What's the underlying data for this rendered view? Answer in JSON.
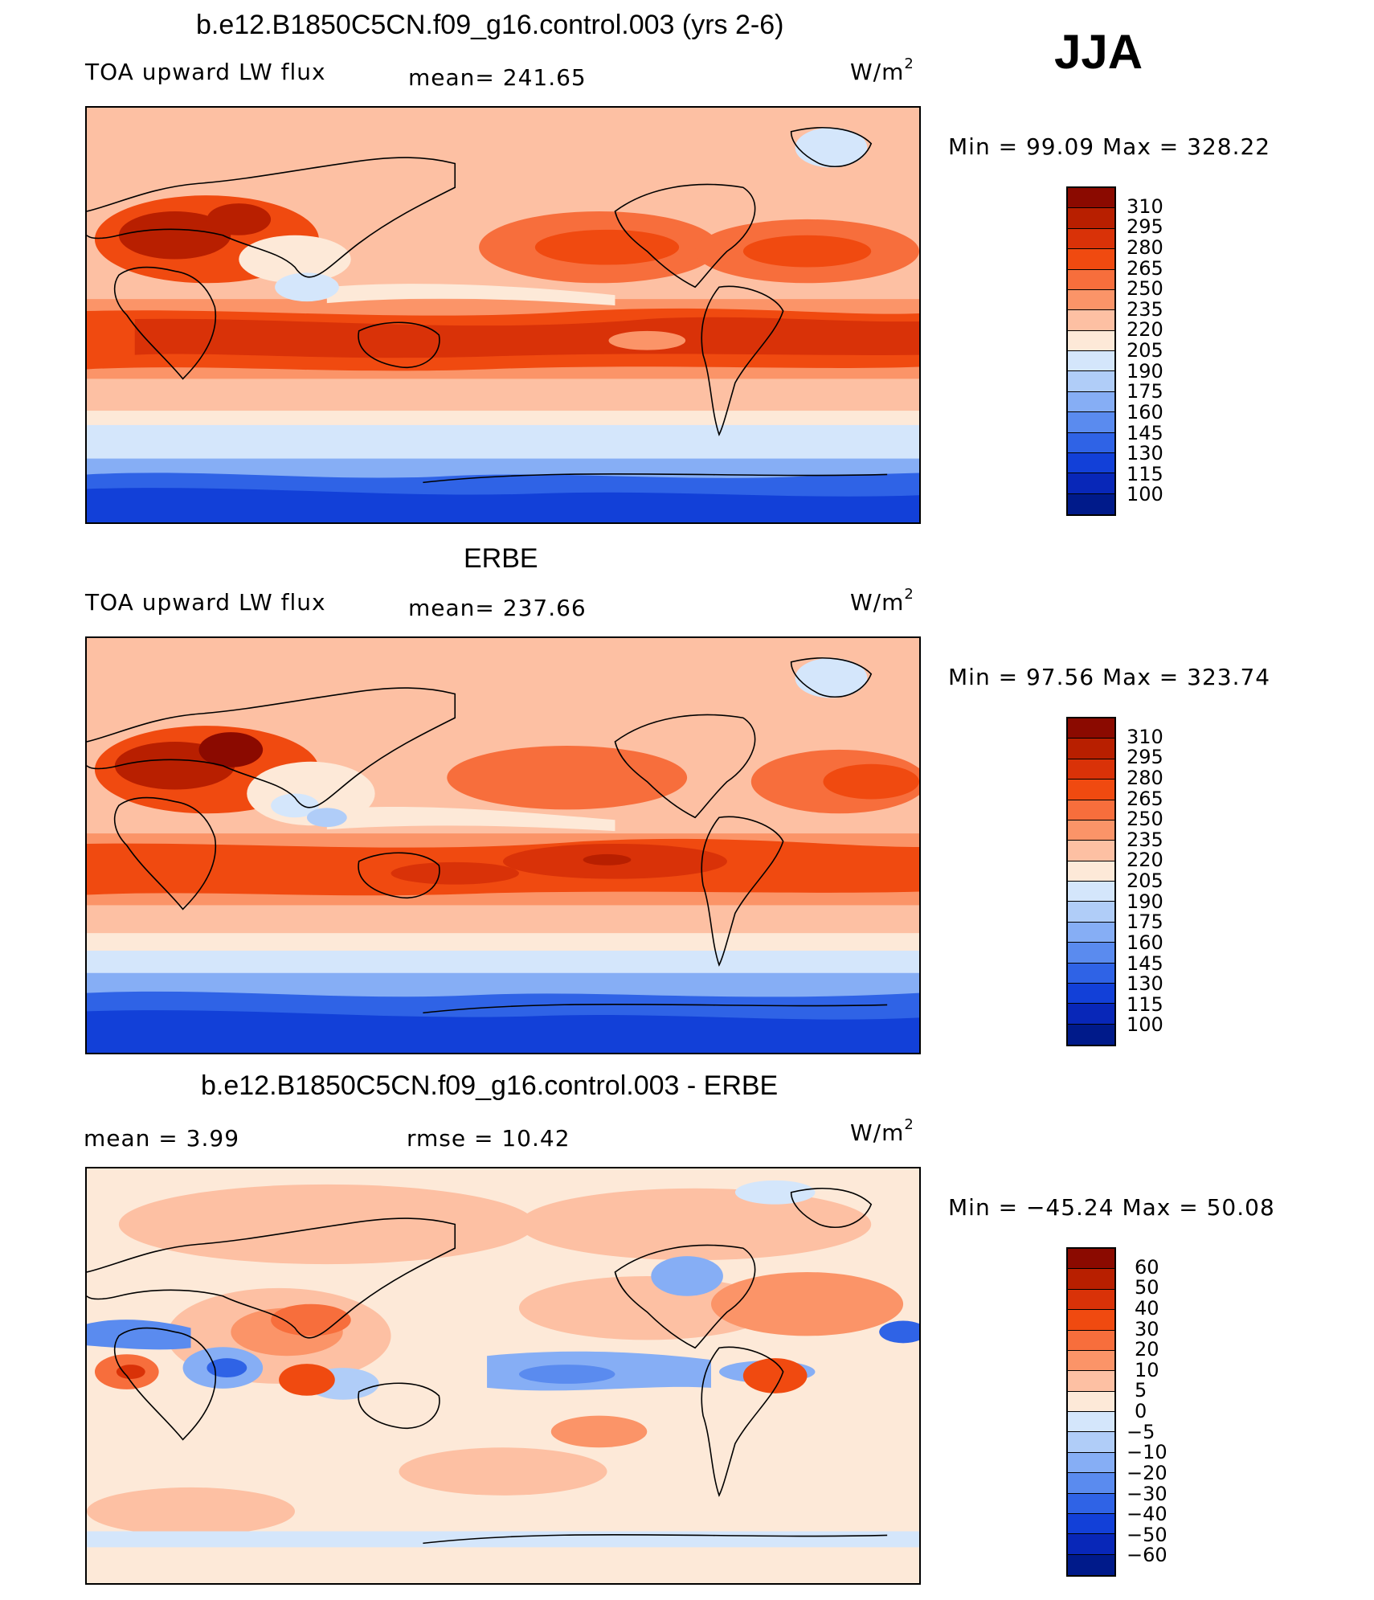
{
  "season": "JJA",
  "units_prefix": "W/m",
  "units_sup": "2",
  "panels": [
    {
      "title": "b.e12.B1850C5CN.f09_g16.control.003 (yrs 2-6)",
      "left_label": "TOA upward LW flux",
      "center_label": "mean=  241.65",
      "minmax": "Min  =    99.09  Max  =  328.22"
    },
    {
      "title": "ERBE",
      "left_label": "TOA upward LW flux",
      "center_label": "mean=  237.66",
      "minmax": "Min  =    97.56  Max  =  323.74"
    },
    {
      "title": "b.e12.B1850C5CN.f09_g16.control.003 - ERBE",
      "left_label": "mean  =     3.99",
      "center_label": "rmse  =    10.42",
      "minmax": "Min  = −45.24  Max  =    50.08"
    }
  ],
  "colorbar_abs": {
    "labels": [
      "310",
      "295",
      "280",
      "265",
      "250",
      "235",
      "220",
      "205",
      "190",
      "175",
      "160",
      "145",
      "130",
      "115",
      "100"
    ],
    "colors": [
      "#8b0a00",
      "#b81f00",
      "#d93208",
      "#f04a10",
      "#f76e3c",
      "#fb9468",
      "#fdc0a3",
      "#fde9d8",
      "#d4e6fb",
      "#b0cdf8",
      "#86aef5",
      "#5a8bef",
      "#2f63e6",
      "#1240d8",
      "#0827b8",
      "#001a8a"
    ]
  },
  "colorbar_diff": {
    "labels": [
      "60",
      "50",
      "40",
      "30",
      "20",
      "10",
      "5",
      "0",
      "−5",
      "−10",
      "−20",
      "−30",
      "−40",
      "−50",
      "−60"
    ],
    "colors": [
      "#8b0a00",
      "#b81f00",
      "#d93208",
      "#f04a10",
      "#f76e3c",
      "#fb9468",
      "#fdc0a3",
      "#fde9d8",
      "#d4e6fb",
      "#b0cdf8",
      "#86aef5",
      "#5a8bef",
      "#2f63e6",
      "#1240d8",
      "#0827b8",
      "#001a8a"
    ]
  }
}
